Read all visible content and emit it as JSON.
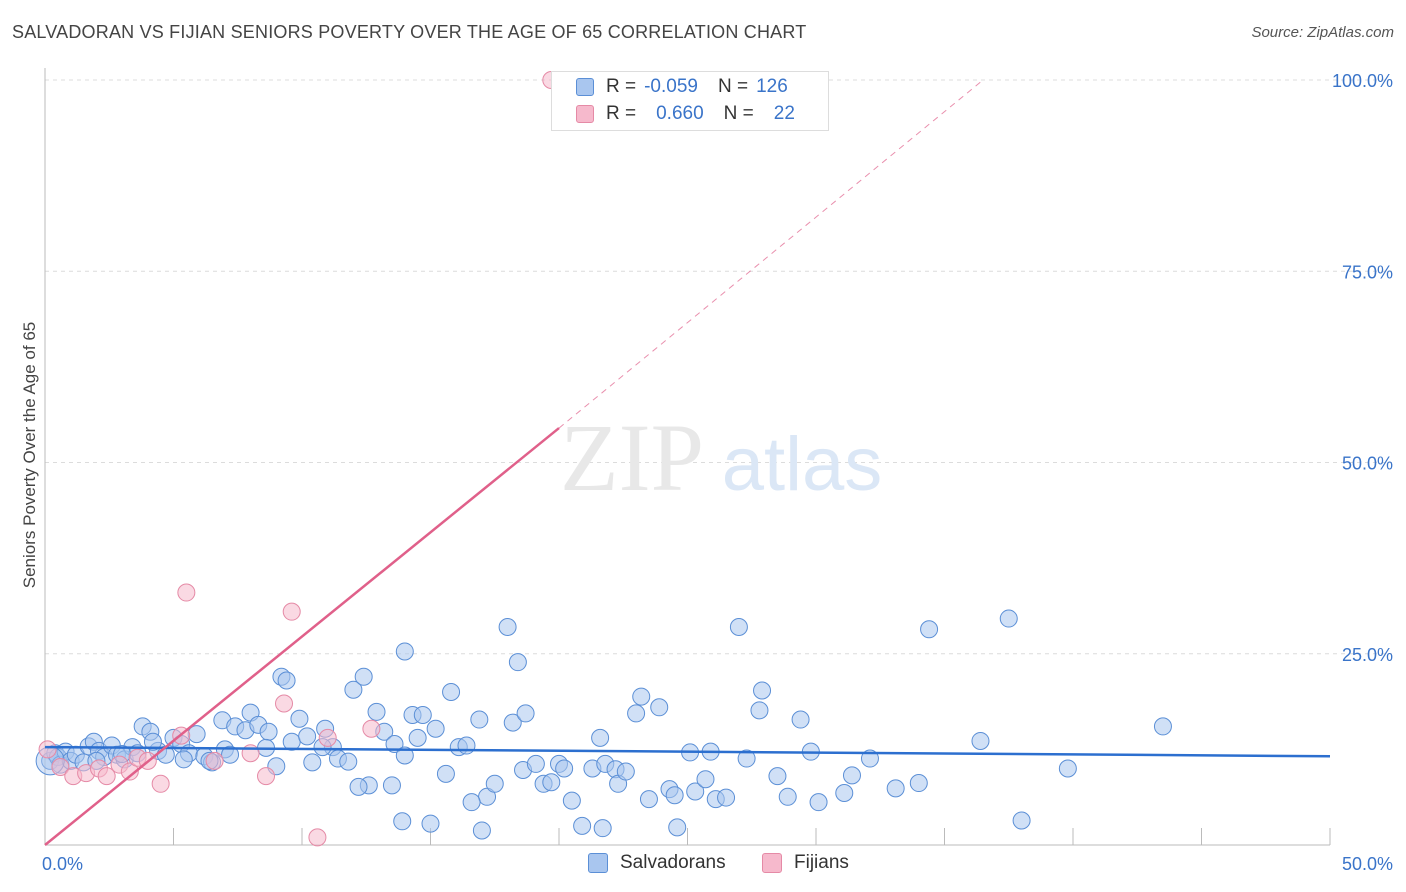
{
  "header": {
    "title": "SALVADORAN VS FIJIAN SENIORS POVERTY OVER THE AGE OF 65 CORRELATION CHART",
    "source": "Source: ZipAtlas.com"
  },
  "watermark": {
    "zip": "ZIP",
    "atlas": "atlas"
  },
  "legend": {
    "items": [
      {
        "r_label": "R =",
        "r_value": "-0.059",
        "n_label": "N =",
        "n_value": "126"
      },
      {
        "r_label": "R =",
        "r_value": "0.660",
        "n_label": "N =",
        "n_value": "22"
      }
    ]
  },
  "colors": {
    "blue_fill": "#a9c6ef",
    "blue_stroke": "#5b8fd6",
    "blue_line": "#2c6fcf",
    "pink_fill": "#f6b9cc",
    "pink_stroke": "#e58aa6",
    "pink_line": "#e0608a",
    "tick_text": "#3a74c9"
  },
  "chart_data": {
    "type": "scatter",
    "title": "SALVADORAN VS FIJIAN SENIORS POVERTY OVER THE AGE OF 65 CORRELATION CHART",
    "xlabel": "",
    "ylabel": "Seniors Poverty Over the Age of 65",
    "xlim": [
      0,
      50
    ],
    "ylim": [
      0,
      100
    ],
    "x_tick_labels": [
      "0.0%",
      "50.0%"
    ],
    "y_tick_labels": [
      "100.0%",
      "75.0%",
      "50.0%",
      "25.0%"
    ],
    "y_tick_values": [
      100,
      75,
      50,
      25
    ],
    "grid": true,
    "legend_position": "top-center",
    "series": [
      {
        "name": "Salvadorans",
        "r": -0.059,
        "n": 126,
        "trend": {
          "x": [
            0,
            50
          ],
          "y": [
            12.8,
            11.6
          ]
        },
        "points": [
          [
            0.2,
            11.0
          ],
          [
            0.4,
            12.0
          ],
          [
            0.5,
            11.5
          ],
          [
            0.6,
            10.5
          ],
          [
            0.8,
            12.2
          ],
          [
            1.0,
            11.0
          ],
          [
            1.2,
            11.8
          ],
          [
            1.5,
            10.8
          ],
          [
            1.7,
            12.9
          ],
          [
            1.9,
            13.5
          ],
          [
            2.1,
            12.3
          ],
          [
            2.3,
            11.5
          ],
          [
            2.6,
            13.0
          ],
          [
            2.8,
            11.8
          ],
          [
            3.1,
            11.2
          ],
          [
            3.4,
            12.8
          ],
          [
            3.6,
            12.0
          ],
          [
            3.8,
            15.5
          ],
          [
            4.1,
            14.8
          ],
          [
            4.4,
            12.3
          ],
          [
            4.7,
            11.8
          ],
          [
            5.0,
            14.0
          ],
          [
            5.3,
            13.2
          ],
          [
            5.6,
            12.0
          ],
          [
            5.9,
            14.5
          ],
          [
            6.2,
            11.6
          ],
          [
            6.5,
            10.8
          ],
          [
            7.0,
            12.5
          ],
          [
            7.2,
            11.8
          ],
          [
            6.9,
            16.3
          ],
          [
            7.4,
            15.5
          ],
          [
            7.8,
            15.0
          ],
          [
            8.0,
            17.3
          ],
          [
            8.3,
            15.7
          ],
          [
            8.7,
            14.8
          ],
          [
            9.2,
            22.0
          ],
          [
            9.4,
            21.5
          ],
          [
            9.0,
            10.3
          ],
          [
            9.6,
            13.5
          ],
          [
            9.9,
            16.5
          ],
          [
            10.2,
            14.2
          ],
          [
            10.4,
            10.8
          ],
          [
            10.9,
            15.2
          ],
          [
            11.2,
            12.8
          ],
          [
            11.4,
            11.3
          ],
          [
            11.8,
            10.9
          ],
          [
            12.0,
            20.3
          ],
          [
            12.4,
            22.0
          ],
          [
            12.6,
            7.8
          ],
          [
            12.9,
            17.4
          ],
          [
            13.2,
            14.8
          ],
          [
            13.5,
            7.8
          ],
          [
            13.6,
            13.2
          ],
          [
            14.0,
            25.3
          ],
          [
            14.3,
            17.0
          ],
          [
            14.7,
            17.0
          ],
          [
            14.0,
            11.7
          ],
          [
            15.2,
            15.2
          ],
          [
            15.6,
            9.3
          ],
          [
            15.8,
            20.0
          ],
          [
            16.1,
            12.8
          ],
          [
            16.4,
            13.0
          ],
          [
            16.9,
            16.4
          ],
          [
            17.2,
            6.3
          ],
          [
            17.5,
            8.0
          ],
          [
            18.0,
            28.5
          ],
          [
            18.2,
            16.0
          ],
          [
            18.4,
            23.9
          ],
          [
            18.6,
            9.8
          ],
          [
            18.7,
            17.2
          ],
          [
            19.1,
            10.6
          ],
          [
            19.4,
            8.0
          ],
          [
            20.0,
            10.6
          ],
          [
            20.2,
            10.0
          ],
          [
            20.5,
            5.8
          ],
          [
            21.3,
            10.0
          ],
          [
            21.6,
            14.0
          ],
          [
            21.8,
            10.6
          ],
          [
            22.2,
            9.9
          ],
          [
            22.3,
            8.0
          ],
          [
            22.6,
            9.6
          ],
          [
            23.0,
            17.2
          ],
          [
            23.2,
            19.4
          ],
          [
            23.5,
            6.0
          ],
          [
            23.9,
            18.0
          ],
          [
            24.3,
            7.3
          ],
          [
            24.5,
            6.5
          ],
          [
            25.1,
            12.1
          ],
          [
            25.3,
            7.0
          ],
          [
            25.7,
            8.6
          ],
          [
            25.9,
            12.2
          ],
          [
            26.1,
            6.0
          ],
          [
            26.5,
            6.2
          ],
          [
            27.0,
            28.5
          ],
          [
            27.3,
            11.3
          ],
          [
            27.8,
            17.6
          ],
          [
            27.9,
            20.2
          ],
          [
            28.5,
            9.0
          ],
          [
            28.9,
            6.3
          ],
          [
            29.4,
            16.4
          ],
          [
            29.8,
            12.2
          ],
          [
            30.1,
            5.6
          ],
          [
            31.1,
            6.8
          ],
          [
            31.4,
            9.1
          ],
          [
            32.1,
            11.3
          ],
          [
            33.1,
            7.4
          ],
          [
            34.0,
            8.1
          ],
          [
            34.4,
            28.2
          ],
          [
            36.4,
            13.6
          ],
          [
            37.5,
            29.6
          ],
          [
            38.0,
            3.2
          ],
          [
            39.8,
            10.0
          ],
          [
            43.5,
            15.5
          ],
          [
            2.0,
            11.0
          ],
          [
            4.2,
            13.5
          ],
          [
            6.4,
            11.0
          ],
          [
            8.6,
            12.7
          ],
          [
            10.8,
            12.8
          ],
          [
            12.2,
            7.6
          ],
          [
            14.5,
            14.0
          ],
          [
            16.6,
            5.6
          ],
          [
            19.7,
            8.2
          ],
          [
            20.9,
            2.5
          ],
          [
            21.7,
            2.2
          ],
          [
            24.6,
            2.3
          ],
          [
            13.9,
            3.1
          ],
          [
            15.0,
            2.8
          ],
          [
            17.0,
            1.9
          ],
          [
            3.0,
            11.9
          ],
          [
            5.4,
            11.2
          ]
        ]
      },
      {
        "name": "Fijians",
        "r": 0.66,
        "n": 22,
        "trend": {
          "x": [
            0,
            20
          ],
          "y": [
            0,
            54.5
          ]
        },
        "trend_extension": {
          "x": [
            20,
            36.5
          ],
          "y": [
            54.5,
            100
          ]
        },
        "points": [
          [
            0.1,
            12.5
          ],
          [
            0.6,
            10.2
          ],
          [
            1.1,
            9.0
          ],
          [
            1.6,
            9.4
          ],
          [
            2.1,
            10.0
          ],
          [
            2.4,
            9.0
          ],
          [
            2.9,
            10.5
          ],
          [
            3.3,
            9.6
          ],
          [
            3.6,
            11.4
          ],
          [
            4.0,
            11.0
          ],
          [
            4.5,
            8.0
          ],
          [
            5.3,
            14.3
          ],
          [
            5.5,
            33.0
          ],
          [
            6.6,
            11.0
          ],
          [
            8.0,
            12.0
          ],
          [
            8.6,
            9.0
          ],
          [
            9.3,
            18.5
          ],
          [
            9.6,
            30.5
          ],
          [
            10.6,
            1.0
          ],
          [
            11.0,
            14.0
          ],
          [
            12.7,
            15.2
          ],
          [
            19.7,
            100.0
          ]
        ]
      }
    ]
  },
  "bottom_legend": {
    "items": [
      "Salvadorans",
      "Fijians"
    ]
  }
}
